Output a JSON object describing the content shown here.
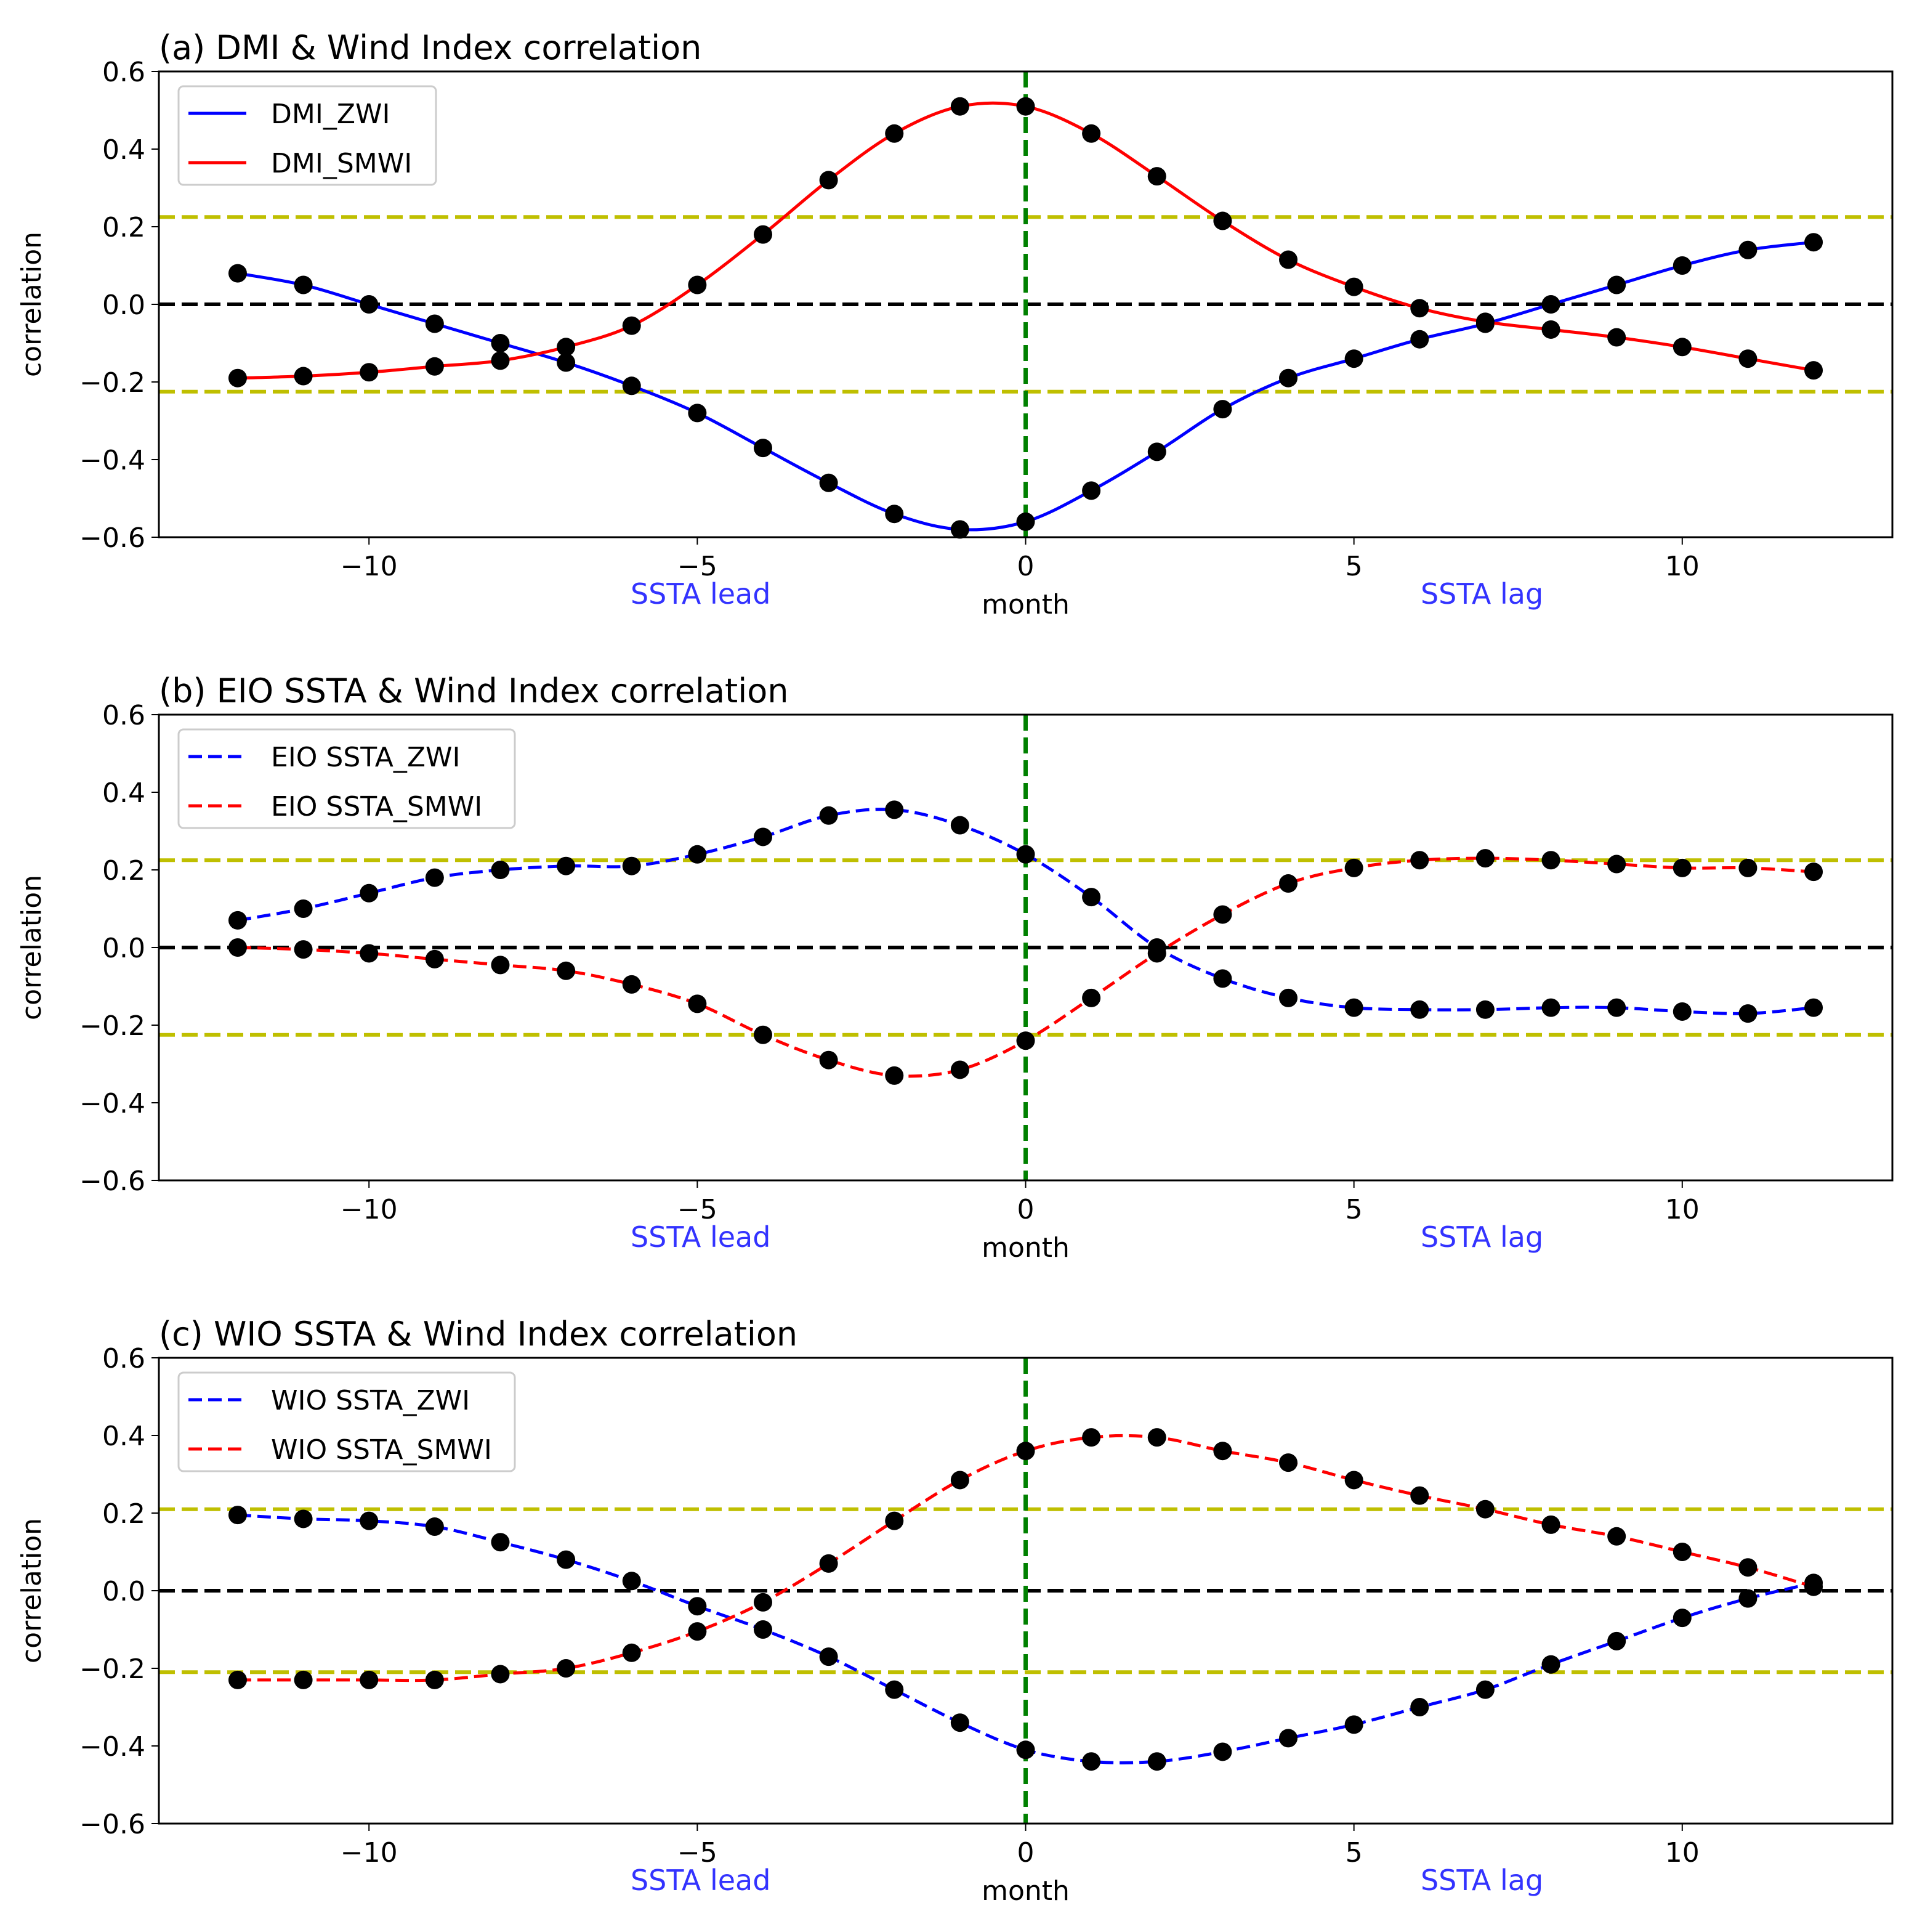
{
  "colors": {
    "blue": "#0000ff",
    "red": "#ff0000",
    "green": "#008000",
    "olive": "#bfbf00",
    "black": "#000000",
    "annotation": "#3333ff"
  },
  "chart_data": [
    {
      "type": "line",
      "title": "(a) DMI & Wind Index correlation",
      "xlabel": "month",
      "ylabel": "correlation",
      "xlim": [
        -13.2,
        13.2
      ],
      "ylim": [
        -0.6,
        0.6
      ],
      "xticks": [
        -10,
        -5,
        0,
        5,
        10
      ],
      "xtick_labels": [
        "−10",
        "−5",
        "0",
        "5",
        "10"
      ],
      "yticks": [
        -0.6,
        -0.4,
        -0.2,
        0.0,
        0.2,
        0.4,
        0.6
      ],
      "ytick_labels": [
        "−0.6",
        "−0.4",
        "−0.2",
        "0.0",
        "0.2",
        "0.4",
        "0.6"
      ],
      "annotations": [
        "SSTA lead",
        "SSTA lag"
      ],
      "significance": [
        0.225,
        -0.225
      ],
      "legend_position": "upper-left",
      "x": [
        -12,
        -11,
        -10,
        -9,
        -8,
        -7,
        -6,
        -5,
        -4,
        -3,
        -2,
        -1,
        0,
        1,
        2,
        3,
        4,
        5,
        6,
        7,
        8,
        9,
        10,
        11,
        12
      ],
      "series": [
        {
          "name": "DMI_ZWI",
          "color": "blue",
          "dash": "solid",
          "values": [
            0.08,
            0.05,
            0.0,
            -0.05,
            -0.1,
            -0.15,
            -0.21,
            -0.28,
            -0.37,
            -0.46,
            -0.54,
            -0.58,
            -0.56,
            -0.48,
            -0.38,
            -0.27,
            -0.19,
            -0.14,
            -0.09,
            -0.05,
            0.0,
            0.05,
            0.1,
            0.14,
            0.16
          ]
        },
        {
          "name": "DMI_SMWI",
          "color": "red",
          "dash": "solid",
          "values": [
            -0.19,
            -0.185,
            -0.175,
            -0.16,
            -0.145,
            -0.11,
            -0.055,
            0.05,
            0.18,
            0.32,
            0.44,
            0.51,
            0.51,
            0.44,
            0.33,
            0.215,
            0.115,
            0.045,
            -0.01,
            -0.045,
            -0.065,
            -0.085,
            -0.11,
            -0.14,
            -0.17
          ]
        }
      ]
    },
    {
      "type": "line",
      "title": "(b) EIO SSTA & Wind Index correlation",
      "xlabel": "month",
      "ylabel": "correlation",
      "xlim": [
        -13.2,
        13.2
      ],
      "ylim": [
        -0.6,
        0.6
      ],
      "xticks": [
        -10,
        -5,
        0,
        5,
        10
      ],
      "xtick_labels": [
        "−10",
        "−5",
        "0",
        "5",
        "10"
      ],
      "yticks": [
        -0.6,
        -0.4,
        -0.2,
        0.0,
        0.2,
        0.4,
        0.6
      ],
      "ytick_labels": [
        "−0.6",
        "−0.4",
        "−0.2",
        "0.0",
        "0.2",
        "0.4",
        "0.6"
      ],
      "annotations": [
        "SSTA lead",
        "SSTA lag"
      ],
      "significance": [
        0.225,
        -0.225
      ],
      "legend_position": "upper-left",
      "x": [
        -12,
        -11,
        -10,
        -9,
        -8,
        -7,
        -6,
        -5,
        -4,
        -3,
        -2,
        -1,
        0,
        1,
        2,
        3,
        4,
        5,
        6,
        7,
        8,
        9,
        10,
        11,
        12
      ],
      "series": [
        {
          "name": "EIO SSTA_ZWI",
          "color": "blue",
          "dash": "dashed",
          "values": [
            0.07,
            0.1,
            0.14,
            0.18,
            0.2,
            0.21,
            0.21,
            0.24,
            0.285,
            0.34,
            0.355,
            0.315,
            0.24,
            0.13,
            0.0,
            -0.08,
            -0.13,
            -0.155,
            -0.16,
            -0.16,
            -0.155,
            -0.155,
            -0.165,
            -0.17,
            -0.155
          ]
        },
        {
          "name": "EIO SSTA_SMWI",
          "color": "red",
          "dash": "dashed",
          "values": [
            0.0,
            -0.005,
            -0.015,
            -0.03,
            -0.045,
            -0.06,
            -0.095,
            -0.145,
            -0.225,
            -0.29,
            -0.33,
            -0.315,
            -0.24,
            -0.13,
            -0.015,
            0.085,
            0.165,
            0.205,
            0.225,
            0.23,
            0.225,
            0.215,
            0.205,
            0.205,
            0.195
          ]
        }
      ]
    },
    {
      "type": "line",
      "title": "(c) WIO SSTA & Wind Index correlation",
      "xlabel": "month",
      "ylabel": "correlation",
      "xlim": [
        -13.2,
        13.2
      ],
      "ylim": [
        -0.6,
        0.6
      ],
      "xticks": [
        -10,
        -5,
        0,
        5,
        10
      ],
      "xtick_labels": [
        "−10",
        "−5",
        "0",
        "5",
        "10"
      ],
      "yticks": [
        -0.6,
        -0.4,
        -0.2,
        0.0,
        0.2,
        0.4,
        0.6
      ],
      "ytick_labels": [
        "−0.6",
        "−0.4",
        "−0.2",
        "0.0",
        "0.2",
        "0.4",
        "0.6"
      ],
      "annotations": [
        "SSTA lead",
        "SSTA lag"
      ],
      "significance": [
        0.21,
        -0.21
      ],
      "legend_position": "upper-left",
      "x": [
        -12,
        -11,
        -10,
        -9,
        -8,
        -7,
        -6,
        -5,
        -4,
        -3,
        -2,
        -1,
        0,
        1,
        2,
        3,
        4,
        5,
        6,
        7,
        8,
        9,
        10,
        11,
        12
      ],
      "series": [
        {
          "name": "WIO SSTA_ZWI",
          "color": "blue",
          "dash": "dashed",
          "values": [
            0.195,
            0.185,
            0.18,
            0.165,
            0.125,
            0.08,
            0.025,
            -0.04,
            -0.1,
            -0.17,
            -0.255,
            -0.34,
            -0.41,
            -0.44,
            -0.44,
            -0.415,
            -0.38,
            -0.345,
            -0.3,
            -0.255,
            -0.19,
            -0.13,
            -0.07,
            -0.02,
            0.02
          ]
        },
        {
          "name": "WIO SSTA_SMWI",
          "color": "red",
          "dash": "dashed",
          "values": [
            -0.23,
            -0.23,
            -0.23,
            -0.23,
            -0.215,
            -0.2,
            -0.16,
            -0.105,
            -0.03,
            0.07,
            0.18,
            0.285,
            0.36,
            0.395,
            0.395,
            0.36,
            0.33,
            0.285,
            0.245,
            0.21,
            0.17,
            0.14,
            0.1,
            0.06,
            0.01
          ]
        }
      ]
    }
  ]
}
